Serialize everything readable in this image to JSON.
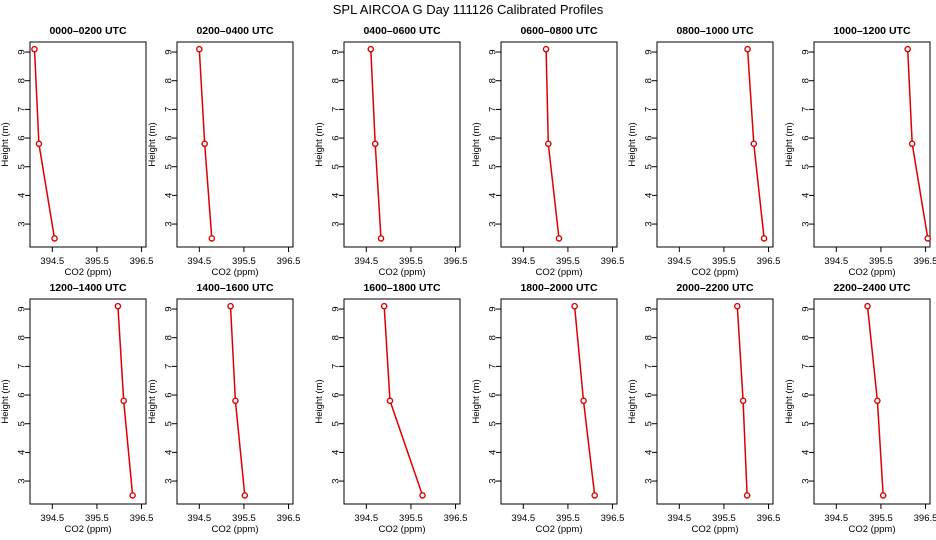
{
  "figure": {
    "title": "SPL AIRCOA G  Day 111126  Calibrated Profiles"
  },
  "axes": {
    "xlabel": "CO2 (ppm)",
    "ylabel": "Height (m)",
    "xticks": [
      "394.5",
      "395.5",
      "396.5"
    ],
    "yticks": [
      "3",
      "4",
      "5",
      "6",
      "7",
      "8",
      "9"
    ]
  },
  "colors": {
    "series": "#dd0000",
    "axis": "#000000",
    "background": "#ffffff"
  },
  "chart_data": [
    {
      "type": "line",
      "title": "0000–0200 UTC",
      "x": [
        394.1,
        394.2,
        394.55
      ],
      "y": [
        9.1,
        5.8,
        2.5
      ],
      "xlim": [
        394.0,
        396.6
      ],
      "ylim": [
        2.2,
        9.35
      ],
      "xlabel": "CO2 (ppm)",
      "ylabel": "Height (m)"
    },
    {
      "type": "line",
      "title": "0200–0400 UTC",
      "x": [
        394.5,
        394.62,
        394.78
      ],
      "y": [
        9.1,
        5.8,
        2.5
      ],
      "xlim": [
        394.0,
        396.6
      ],
      "ylim": [
        2.2,
        9.35
      ],
      "xlabel": "CO2 (ppm)",
      "ylabel": "Height (m)"
    },
    {
      "type": "line",
      "title": "0400–0600 UTC",
      "x": [
        394.6,
        394.7,
        394.83
      ],
      "y": [
        9.1,
        5.8,
        2.5
      ],
      "xlim": [
        394.0,
        396.6
      ],
      "ylim": [
        2.2,
        9.35
      ],
      "xlabel": "CO2 (ppm)",
      "ylabel": "Height (m)"
    },
    {
      "type": "line",
      "title": "0600–0800 UTC",
      "x": [
        395.01,
        395.06,
        395.3
      ],
      "y": [
        9.1,
        5.8,
        2.5
      ],
      "xlim": [
        394.0,
        396.6
      ],
      "ylim": [
        2.2,
        9.35
      ],
      "xlabel": "CO2 (ppm)",
      "ylabel": "Height (m)"
    },
    {
      "type": "line",
      "title": "0800–1000 UTC",
      "x": [
        396.03,
        396.17,
        396.4
      ],
      "y": [
        9.1,
        5.8,
        2.5
      ],
      "xlim": [
        394.0,
        396.6
      ],
      "ylim": [
        2.2,
        9.35
      ],
      "xlabel": "CO2 (ppm)",
      "ylabel": "Height (m)"
    },
    {
      "type": "line",
      "title": "1000–1200 UTC",
      "x": [
        396.1,
        396.2,
        396.55
      ],
      "y": [
        9.1,
        5.8,
        2.5
      ],
      "xlim": [
        394.0,
        396.6
      ],
      "ylim": [
        2.2,
        9.35
      ],
      "xlabel": "CO2 (ppm)",
      "ylabel": "Height (m)"
    },
    {
      "type": "line",
      "title": "1200–1400 UTC",
      "x": [
        395.97,
        396.1,
        396.3
      ],
      "y": [
        9.1,
        5.8,
        2.5
      ],
      "xlim": [
        394.0,
        396.6
      ],
      "ylim": [
        2.2,
        9.35
      ],
      "xlabel": "CO2 (ppm)",
      "ylabel": "Height (m)"
    },
    {
      "type": "line",
      "title": "1400–1600 UTC",
      "x": [
        395.2,
        395.31,
        395.52
      ],
      "y": [
        9.1,
        5.8,
        2.5
      ],
      "xlim": [
        394.0,
        396.6
      ],
      "ylim": [
        2.2,
        9.35
      ],
      "xlabel": "CO2 (ppm)",
      "ylabel": "Height (m)"
    },
    {
      "type": "line",
      "title": "1600–1800 UTC",
      "x": [
        394.9,
        395.03,
        395.76
      ],
      "y": [
        9.1,
        5.8,
        2.5
      ],
      "xlim": [
        394.0,
        396.6
      ],
      "ylim": [
        2.2,
        9.35
      ],
      "xlabel": "CO2 (ppm)",
      "ylabel": "Height (m)"
    },
    {
      "type": "line",
      "title": "1800–2000 UTC",
      "x": [
        395.65,
        395.85,
        396.1
      ],
      "y": [
        9.1,
        5.8,
        2.5
      ],
      "xlim": [
        394.0,
        396.6
      ],
      "ylim": [
        2.2,
        9.35
      ],
      "xlabel": "CO2 (ppm)",
      "ylabel": "Height (m)"
    },
    {
      "type": "line",
      "title": "2000–2200 UTC",
      "x": [
        395.8,
        395.93,
        396.02
      ],
      "y": [
        9.1,
        5.8,
        2.5
      ],
      "xlim": [
        394.0,
        396.6
      ],
      "ylim": [
        2.2,
        9.35
      ],
      "xlabel": "CO2 (ppm)",
      "ylabel": "Height (m)"
    },
    {
      "type": "line",
      "title": "2200–2400 UTC",
      "x": [
        395.2,
        395.42,
        395.55
      ],
      "y": [
        9.1,
        5.8,
        2.5
      ],
      "xlim": [
        394.0,
        396.6
      ],
      "ylim": [
        2.2,
        9.35
      ],
      "xlabel": "CO2 (ppm)",
      "ylabel": "Height (m)"
    }
  ]
}
